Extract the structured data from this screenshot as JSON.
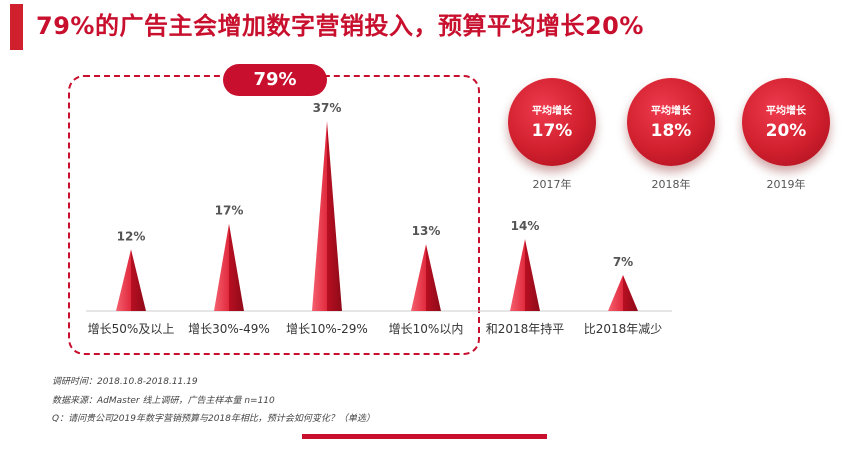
{
  "title": "79%的广告主会增加数字营销投入，预算平均增长20%",
  "highlight": "79%",
  "colors": {
    "accent": "#c8102e",
    "bar_light": "#f04a5c",
    "bar_dark": "#b10f22"
  },
  "chart_data": {
    "type": "bar",
    "categories": [
      "增长50%及以上",
      "增长30%-49%",
      "增长10%-29%",
      "增长10%以内",
      "和2018年持平",
      "比2018年减少"
    ],
    "values": [
      12,
      17,
      37,
      13,
      14,
      7
    ],
    "labels": [
      "12%",
      "17%",
      "37%",
      "13%",
      "14%",
      "7%"
    ],
    "unit": "%"
  },
  "averages": [
    {
      "label": "平均增长",
      "value": "17%",
      "year": "2017年"
    },
    {
      "label": "平均增长",
      "value": "18%",
      "year": "2018年"
    },
    {
      "label": "平均增长",
      "value": "20%",
      "year": "2019年"
    }
  ],
  "notes": {
    "survey_time": "调研时间：2018.10.8-2018.11.19",
    "source": "数据来源：AdMaster 线上调研，广告主样本量 n=110",
    "question": "Q：请问贵公司2019年数字营销预算与2018年相比，预计会如何变化？（单选）"
  }
}
